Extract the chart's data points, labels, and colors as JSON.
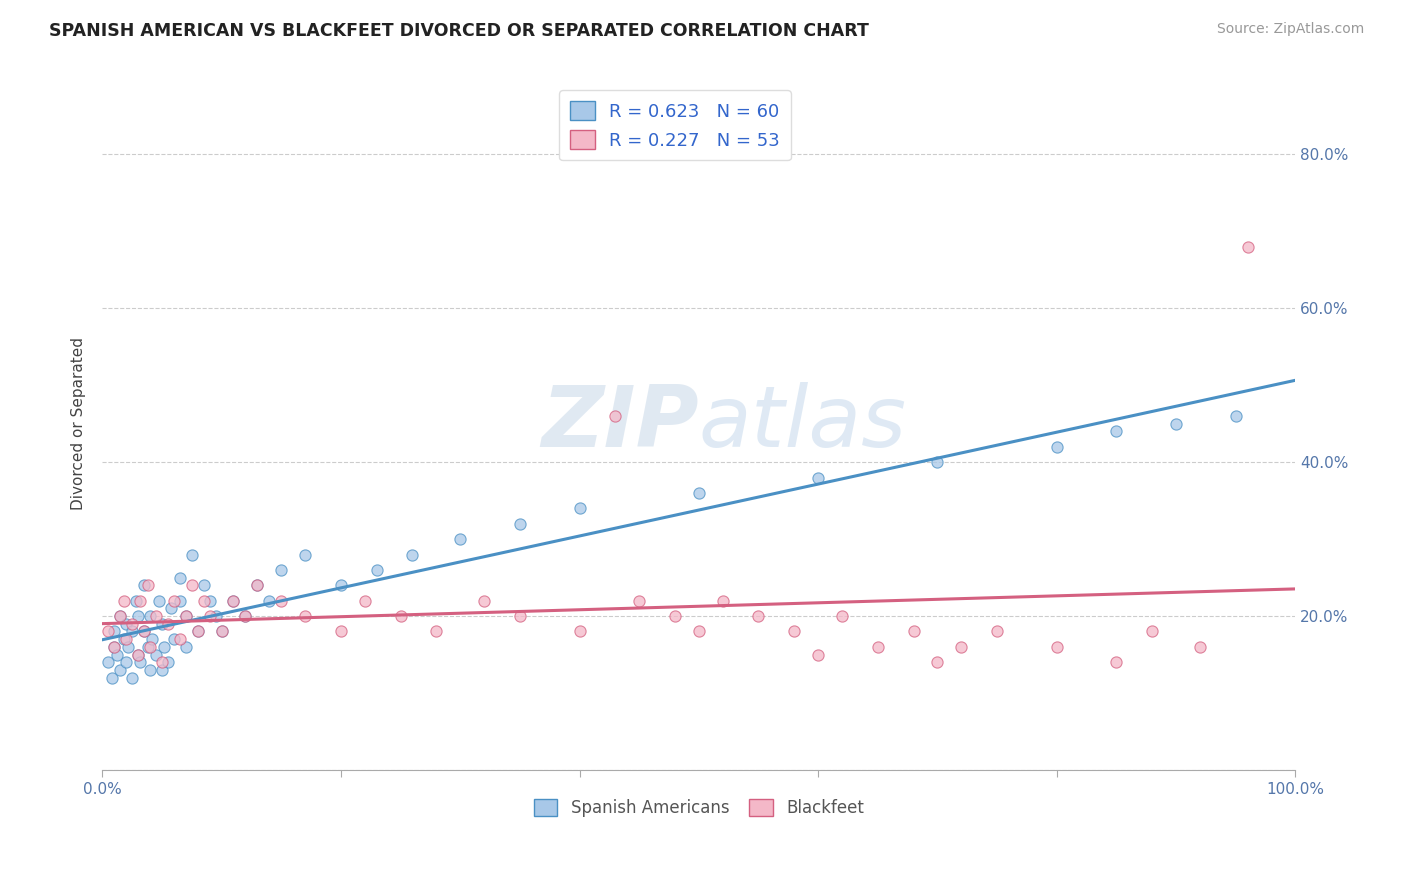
{
  "title": "SPANISH AMERICAN VS BLACKFEET DIVORCED OR SEPARATED CORRELATION CHART",
  "source": "Source: ZipAtlas.com",
  "ylabel": "Divorced or Separated",
  "legend_label1": "Spanish Americans",
  "legend_label2": "Blackfeet",
  "r1": 0.623,
  "n1": 60,
  "r2": 0.227,
  "n2": 53,
  "color_blue": "#a8c8e8",
  "color_blue_dark": "#4a90c4",
  "color_pink": "#f4b8c8",
  "color_pink_dark": "#d46080",
  "xlim": [
    0.0,
    1.0
  ],
  "ylim": [
    0.0,
    0.9
  ],
  "yticks": [
    0.0,
    0.2,
    0.4,
    0.6,
    0.8
  ],
  "ytick_labels": [
    "",
    "20.0%",
    "40.0%",
    "60.0%",
    "80.0%"
  ],
  "blue_scatter_x": [
    0.005,
    0.008,
    0.01,
    0.01,
    0.012,
    0.015,
    0.015,
    0.018,
    0.02,
    0.02,
    0.022,
    0.025,
    0.025,
    0.028,
    0.03,
    0.03,
    0.032,
    0.035,
    0.035,
    0.038,
    0.04,
    0.04,
    0.042,
    0.045,
    0.048,
    0.05,
    0.05,
    0.052,
    0.055,
    0.058,
    0.06,
    0.065,
    0.065,
    0.07,
    0.07,
    0.075,
    0.08,
    0.085,
    0.09,
    0.095,
    0.1,
    0.11,
    0.12,
    0.13,
    0.14,
    0.15,
    0.17,
    0.2,
    0.23,
    0.26,
    0.3,
    0.35,
    0.4,
    0.5,
    0.6,
    0.7,
    0.8,
    0.85,
    0.9,
    0.95
  ],
  "blue_scatter_y": [
    0.14,
    0.12,
    0.16,
    0.18,
    0.15,
    0.13,
    0.2,
    0.17,
    0.14,
    0.19,
    0.16,
    0.12,
    0.18,
    0.22,
    0.15,
    0.2,
    0.14,
    0.18,
    0.24,
    0.16,
    0.13,
    0.2,
    0.17,
    0.15,
    0.22,
    0.13,
    0.19,
    0.16,
    0.14,
    0.21,
    0.17,
    0.22,
    0.25,
    0.16,
    0.2,
    0.28,
    0.18,
    0.24,
    0.22,
    0.2,
    0.18,
    0.22,
    0.2,
    0.24,
    0.22,
    0.26,
    0.28,
    0.24,
    0.26,
    0.28,
    0.3,
    0.32,
    0.34,
    0.36,
    0.38,
    0.4,
    0.42,
    0.44,
    0.45,
    0.46
  ],
  "pink_scatter_x": [
    0.005,
    0.01,
    0.015,
    0.018,
    0.02,
    0.025,
    0.03,
    0.032,
    0.035,
    0.038,
    0.04,
    0.045,
    0.05,
    0.055,
    0.06,
    0.065,
    0.07,
    0.075,
    0.08,
    0.085,
    0.09,
    0.1,
    0.11,
    0.12,
    0.13,
    0.15,
    0.17,
    0.2,
    0.22,
    0.25,
    0.28,
    0.32,
    0.35,
    0.4,
    0.43,
    0.45,
    0.48,
    0.5,
    0.52,
    0.55,
    0.58,
    0.6,
    0.62,
    0.65,
    0.68,
    0.7,
    0.72,
    0.75,
    0.8,
    0.85,
    0.88,
    0.92,
    0.96
  ],
  "pink_scatter_y": [
    0.18,
    0.16,
    0.2,
    0.22,
    0.17,
    0.19,
    0.15,
    0.22,
    0.18,
    0.24,
    0.16,
    0.2,
    0.14,
    0.19,
    0.22,
    0.17,
    0.2,
    0.24,
    0.18,
    0.22,
    0.2,
    0.18,
    0.22,
    0.2,
    0.24,
    0.22,
    0.2,
    0.18,
    0.22,
    0.2,
    0.18,
    0.22,
    0.2,
    0.18,
    0.46,
    0.22,
    0.2,
    0.18,
    0.22,
    0.2,
    0.18,
    0.15,
    0.2,
    0.16,
    0.18,
    0.14,
    0.16,
    0.18,
    0.16,
    0.14,
    0.18,
    0.16,
    0.68
  ]
}
